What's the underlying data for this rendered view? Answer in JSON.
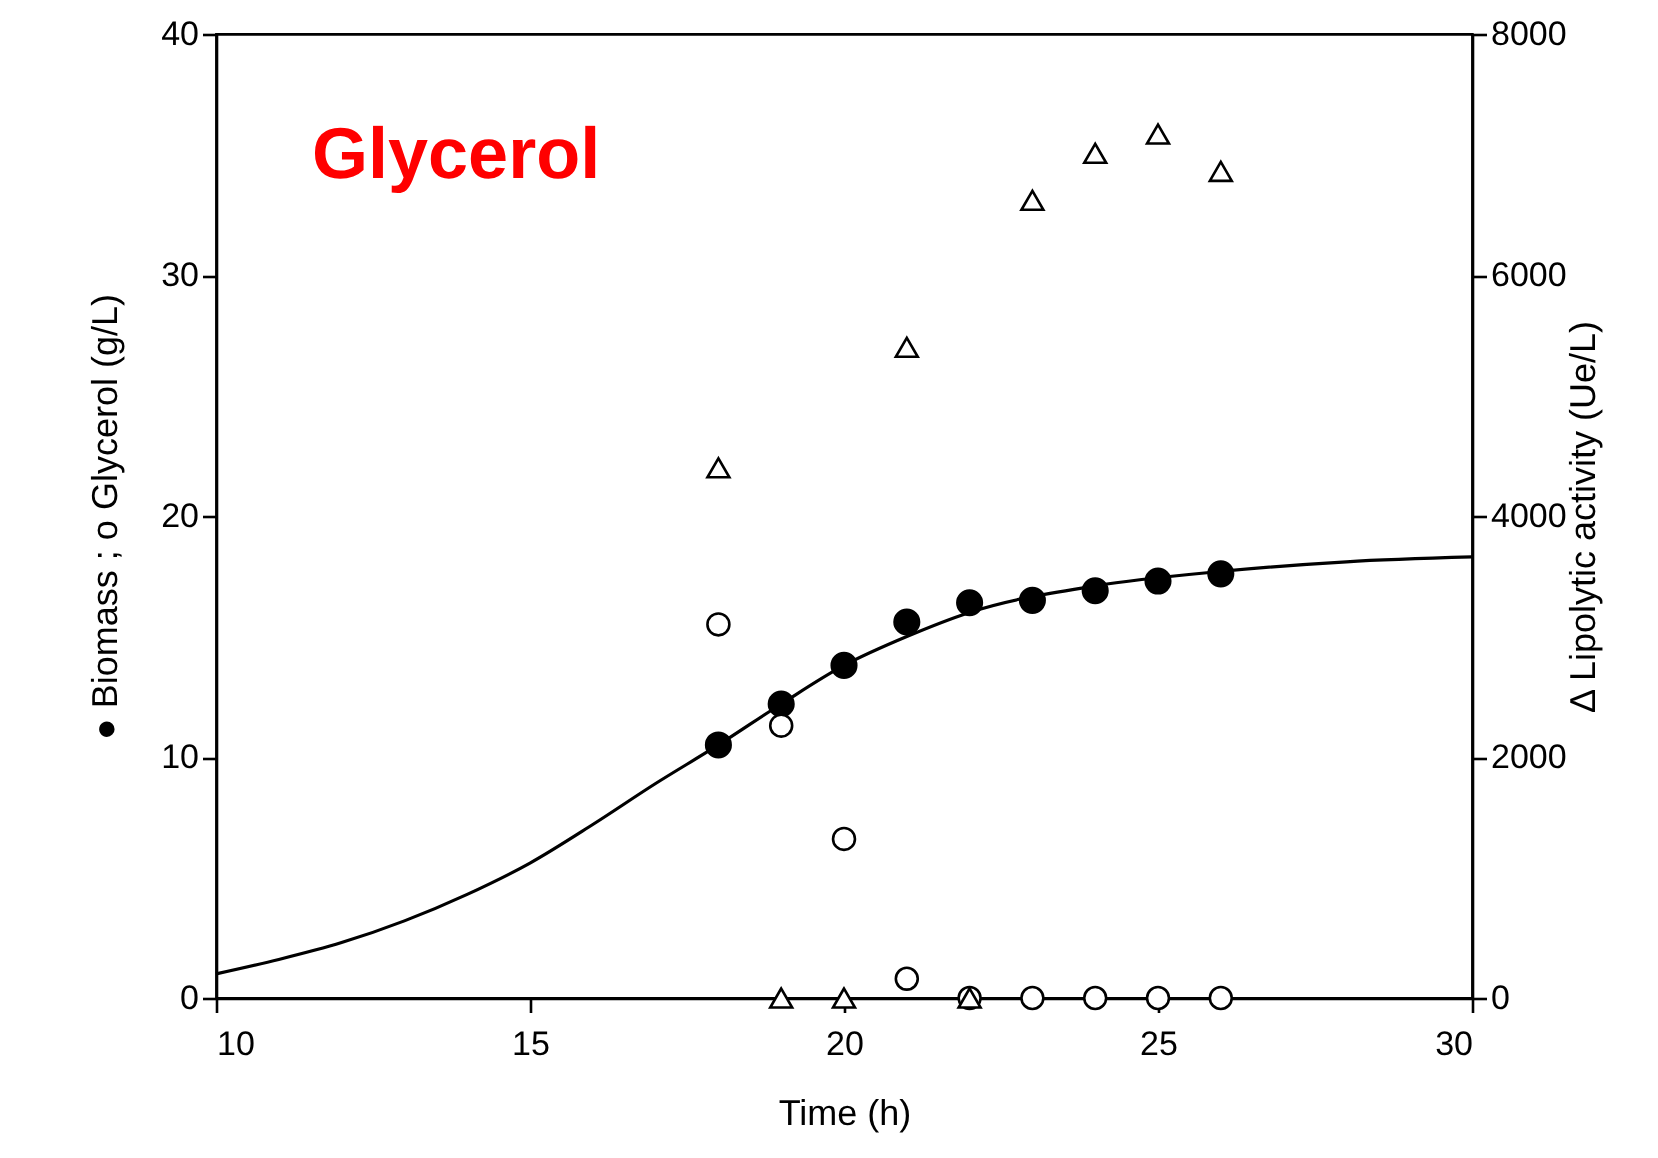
{
  "chart_data": {
    "type": "scatter",
    "xlabel": "Time (h)",
    "ylabel": "●  Biomass   ; o Glycerol  (g/L)",
    "y2label": "Δ Lipolytic activity  (Ue/L)",
    "annotations": [
      "Glycerol"
    ],
    "x": [
      18,
      19,
      20,
      21,
      22,
      23,
      24,
      25,
      26
    ],
    "series": [
      {
        "color": "#000000",
        "marker": "circle",
        "values": [
          10.5,
          12.2,
          13.8,
          15.6,
          16.4,
          16.5,
          16.9,
          17.3,
          17.6
        ]
      },
      {
        "color": "#000000",
        "marker": "circle",
        "values": [
          15.5,
          11.3,
          6.6,
          0.8,
          0,
          0,
          0,
          0,
          0
        ]
      },
      {
        "color": "#000000",
        "marker": "triangle",
        "axis": "y2",
        "values": [
          4400,
          0,
          0,
          5400,
          0,
          6620,
          7010,
          7170,
          6860
        ]
      },
      {
        "type": "line",
        "color": "#000000",
        "marker": "none",
        "line_style": "solid",
        "x": [
          10,
          11,
          12,
          13,
          14,
          15,
          16,
          17,
          18,
          19,
          20,
          21,
          22,
          24,
          26,
          28,
          30
        ],
        "values": [
          1.0,
          1.6,
          2.3,
          3.2,
          4.3,
          5.6,
          7.2,
          8.9,
          10.5,
          12.2,
          13.8,
          15.0,
          16.0,
          17.1,
          17.7,
          18.1,
          18.3
        ]
      }
    ],
    "xlim": [
      10,
      30
    ],
    "xticks": [
      10,
      15,
      20,
      25,
      30
    ],
    "ylim": [
      0,
      40
    ],
    "yticks": [
      0,
      10,
      20,
      30,
      40
    ],
    "y2lim": [
      0,
      8000
    ],
    "y2ticks": [
      0,
      2000,
      4000,
      6000,
      8000
    ],
    "grid": false
  }
}
